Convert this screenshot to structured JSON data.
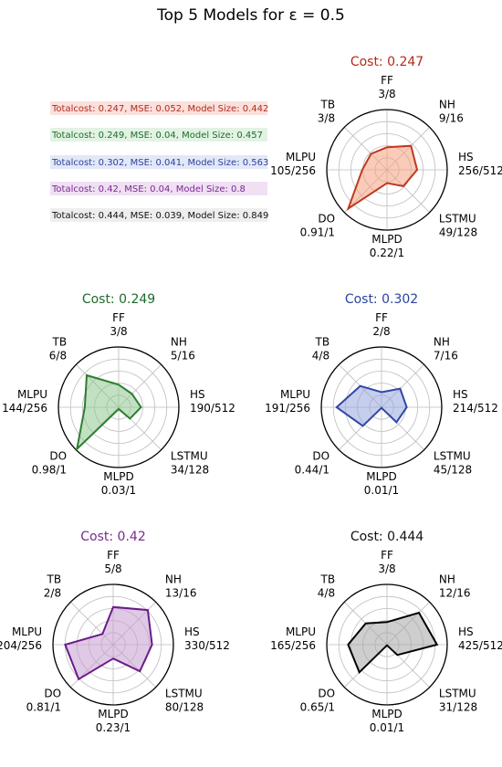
{
  "figure": {
    "title": "Top 5 Models for ε = 0.5"
  },
  "legend": {
    "entries": [
      {
        "text": "Totalcost: 0.247, MSE: 0.052, Model Size: 0.442",
        "color": "#b22b1a",
        "bg": "#fbe0dc"
      },
      {
        "text": "Totalcost: 0.249, MSE: 0.04, Model Size: 0.457",
        "color": "#1e6b2a",
        "bg": "#e2f3e3"
      },
      {
        "text": "Totalcost: 0.302, MSE: 0.041, Model Size: 0.563",
        "color": "#2a43a0",
        "bg": "#e3e8f7"
      },
      {
        "text": "Totalcost: 0.42, MSE: 0.04, Model Size: 0.8",
        "color": "#7b2a91",
        "bg": "#efe0f3"
      },
      {
        "text": "Totalcost: 0.444, MSE: 0.039, Model Size: 0.849",
        "color": "#111111",
        "bg": "#eeeeee"
      }
    ]
  },
  "chart_data": [
    {
      "type": "radar",
      "title": "Cost: 0.247",
      "title_color": "#b22b1a",
      "line_color": "#c0391f",
      "fill_color": "#f5a07f",
      "axes": [
        "FF",
        "NH",
        "HS",
        "LSTMU",
        "MLPD",
        "DO",
        "MLPU",
        "TB"
      ],
      "value_labels": [
        "3/8",
        "9/16",
        "256/512",
        "49/128",
        "0.22/1",
        "0.91/1",
        "105/256",
        "3/8"
      ],
      "values": [
        0.375,
        0.5625,
        0.5,
        0.383,
        0.22,
        0.91,
        0.41,
        0.375
      ],
      "rlim": [
        0,
        1
      ]
    },
    {
      "type": "radar",
      "title": "Cost: 0.249",
      "title_color": "#1e6b2a",
      "line_color": "#2e7d32",
      "fill_color": "#8fc690",
      "axes": [
        "FF",
        "NH",
        "HS",
        "LSTMU",
        "MLPD",
        "DO",
        "MLPU",
        "TB"
      ],
      "value_labels": [
        "3/8",
        "5/16",
        "190/512",
        "34/128",
        "0.03/1",
        "0.98/1",
        "144/256",
        "6/8"
      ],
      "values": [
        0.375,
        0.3125,
        0.371,
        0.266,
        0.03,
        0.98,
        0.5625,
        0.75
      ],
      "rlim": [
        0,
        1
      ]
    },
    {
      "type": "radar",
      "title": "Cost: 0.302",
      "title_color": "#2a43a0",
      "line_color": "#2f47a8",
      "fill_color": "#98a6e0",
      "axes": [
        "FF",
        "NH",
        "HS",
        "LSTMU",
        "MLPD",
        "DO",
        "MLPU",
        "TB"
      ],
      "value_labels": [
        "2/8",
        "7/16",
        "214/512",
        "45/128",
        "0.01/1",
        "0.44/1",
        "191/256",
        "4/8"
      ],
      "values": [
        0.25,
        0.4375,
        0.418,
        0.352,
        0.01,
        0.44,
        0.746,
        0.5
      ],
      "rlim": [
        0,
        1
      ]
    },
    {
      "type": "radar",
      "title": "Cost: 0.42",
      "title_color": "#7b2a91",
      "line_color": "#6a1b8a",
      "fill_color": "#c49ccf",
      "axes": [
        "FF",
        "NH",
        "HS",
        "LSTMU",
        "MLPD",
        "DO",
        "MLPU",
        "TB"
      ],
      "value_labels": [
        "5/8",
        "13/16",
        "330/512",
        "80/128",
        "0.23/1",
        "0.81/1",
        "204/256",
        "2/8"
      ],
      "values": [
        0.625,
        0.8125,
        0.645,
        0.625,
        0.23,
        0.81,
        0.797,
        0.25
      ],
      "rlim": [
        0,
        1
      ]
    },
    {
      "type": "radar",
      "title": "Cost: 0.444",
      "title_color": "#111111",
      "line_color": "#000000",
      "fill_color": "#a6a6a6",
      "axes": [
        "FF",
        "NH",
        "HS",
        "LSTMU",
        "MLPD",
        "DO",
        "MLPU",
        "TB"
      ],
      "value_labels": [
        "3/8",
        "12/16",
        "425/512",
        "31/128",
        "0.01/1",
        "0.65/1",
        "165/256",
        "4/8"
      ],
      "values": [
        0.375,
        0.75,
        0.83,
        0.242,
        0.01,
        0.65,
        0.645,
        0.5
      ],
      "rlim": [
        0,
        1
      ]
    }
  ]
}
